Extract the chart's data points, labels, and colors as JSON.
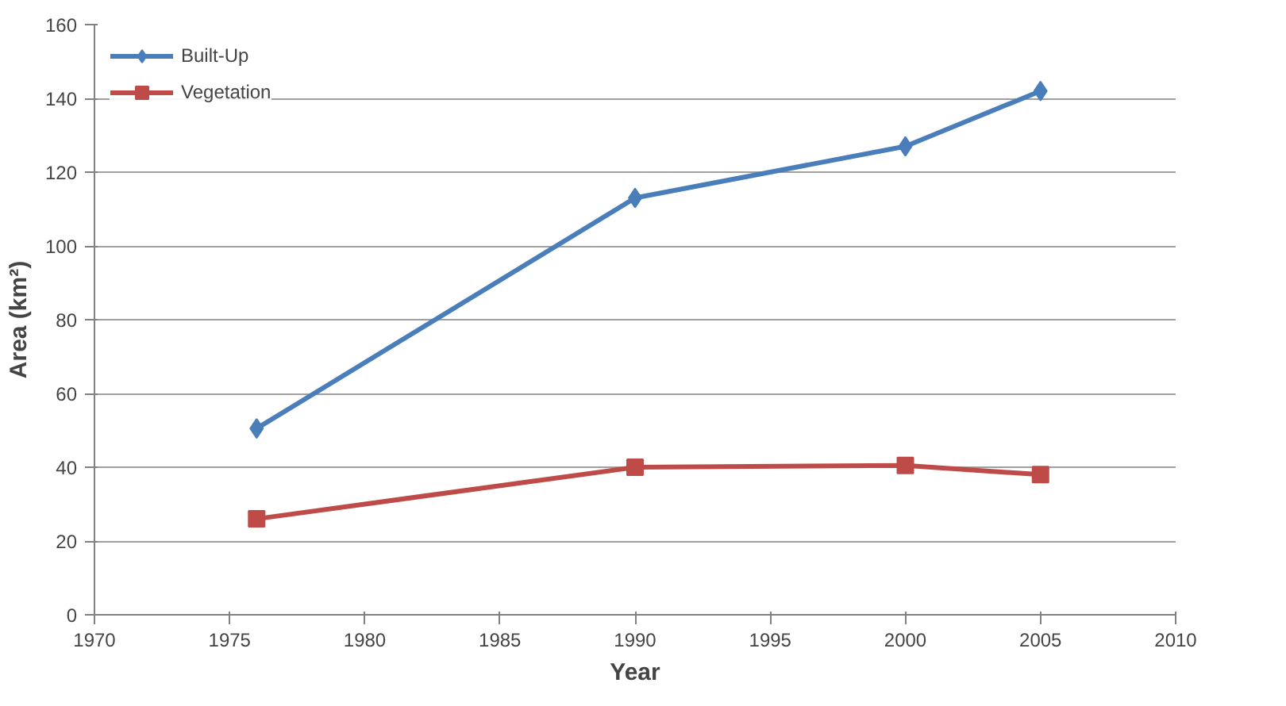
{
  "chart_data": {
    "type": "line",
    "xlabel": "Year",
    "ylabel": "Area (km²)",
    "xlim": [
      1970,
      2010
    ],
    "xticks": [
      1970,
      1975,
      1980,
      1985,
      1990,
      1995,
      2000,
      2005,
      2010
    ],
    "ylim": [
      0,
      160
    ],
    "yticks": [
      0,
      20,
      40,
      60,
      80,
      100,
      120,
      140,
      160
    ],
    "grid": "y",
    "legend": "top left",
    "series": [
      {
        "name": "Built-Up",
        "color": "#4a7ebb",
        "marker": "diamond",
        "x": [
          1976,
          1990,
          2000,
          2005
        ],
        "values": [
          50.5,
          113,
          127,
          142
        ]
      },
      {
        "name": "Vegetation",
        "color": "#be4b48",
        "marker": "square",
        "x": [
          1976,
          1990,
          2000,
          2005
        ],
        "values": [
          26,
          40,
          40.5,
          38
        ]
      }
    ]
  }
}
